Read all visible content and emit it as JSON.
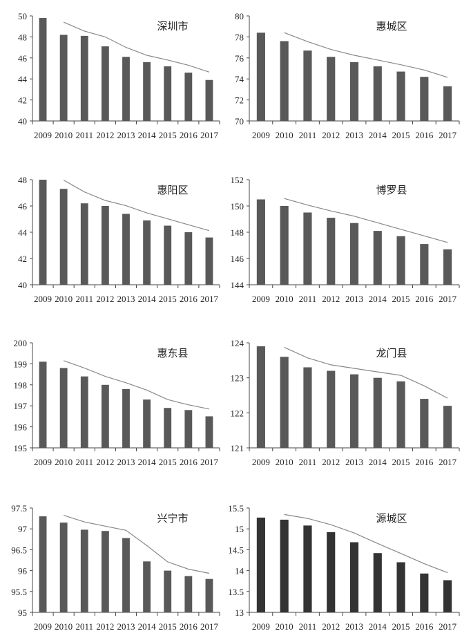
{
  "chart_data": [
    {
      "type": "bar",
      "title": "深圳市",
      "categories": [
        "2009",
        "2010",
        "2011",
        "2012",
        "2013",
        "2014",
        "2015",
        "2016",
        "2017"
      ],
      "values": [
        49.8,
        48.2,
        48.1,
        47.1,
        46.1,
        45.6,
        45.2,
        44.6,
        43.9
      ],
      "ylim": [
        40,
        50
      ],
      "yticks": [
        "40",
        "42",
        "44",
        "46",
        "48",
        "50"
      ],
      "trendline": "2-period moving average",
      "bar_color": "#595959"
    },
    {
      "type": "bar",
      "title": "惠城区",
      "categories": [
        "2009",
        "2010",
        "2011",
        "2012",
        "2013",
        "2014",
        "2015",
        "2016",
        "2017"
      ],
      "values": [
        78.4,
        77.6,
        76.7,
        76.1,
        75.6,
        75.2,
        74.7,
        74.2,
        73.3
      ],
      "ylim": [
        70,
        80
      ],
      "yticks": [
        "70",
        "72",
        "74",
        "76",
        "78",
        "80"
      ],
      "trendline": "2-period moving average",
      "bar_color": "#595959"
    },
    {
      "type": "bar",
      "title": "惠阳区",
      "categories": [
        "2009",
        "2010",
        "2011",
        "2012",
        "2013",
        "2014",
        "2015",
        "2016",
        "2017"
      ],
      "values": [
        48.0,
        47.3,
        46.2,
        46.0,
        45.4,
        44.9,
        44.5,
        44.0,
        43.6
      ],
      "ylim": [
        40,
        48
      ],
      "yticks": [
        "40",
        "42",
        "44",
        "46",
        "48"
      ],
      "trendline": "2-period moving average",
      "bar_color": "#595959"
    },
    {
      "type": "bar",
      "title": "博罗县",
      "categories": [
        "2009",
        "2010",
        "2011",
        "2012",
        "2013",
        "2014",
        "2015",
        "2016",
        "2017"
      ],
      "values": [
        150.5,
        150.0,
        149.5,
        149.1,
        148.7,
        148.1,
        147.7,
        147.1,
        146.7
      ],
      "ylim": [
        144,
        152
      ],
      "yticks": [
        "144",
        "146",
        "148",
        "150",
        "152"
      ],
      "trendline": "2-period moving average",
      "bar_color": "#595959"
    },
    {
      "type": "bar",
      "title": "惠东县",
      "categories": [
        "2009",
        "2010",
        "2011",
        "2012",
        "2013",
        "2014",
        "2015",
        "2016",
        "2017"
      ],
      "values": [
        199.1,
        198.8,
        198.4,
        198.0,
        197.8,
        197.3,
        196.9,
        196.8,
        196.5
      ],
      "ylim": [
        195,
        200
      ],
      "yticks": [
        "195",
        "196",
        "197",
        "198",
        "199",
        "200"
      ],
      "trendline": "2-period moving average",
      "bar_color": "#595959"
    },
    {
      "type": "bar",
      "title": "龙门县",
      "categories": [
        "2009",
        "2010",
        "2011",
        "2012",
        "2013",
        "2014",
        "2015",
        "2016",
        "2017"
      ],
      "values": [
        123.9,
        123.6,
        123.3,
        123.2,
        123.1,
        123.0,
        122.9,
        122.4,
        122.2
      ],
      "ylim": [
        121,
        124
      ],
      "yticks": [
        "121",
        "122",
        "123",
        "124"
      ],
      "trendline": "2-period moving average",
      "bar_color": "#595959"
    },
    {
      "type": "bar",
      "title": "兴宁市",
      "categories": [
        "2009",
        "2010",
        "2011",
        "2012",
        "2013",
        "2014",
        "2015",
        "2016",
        "2017"
      ],
      "values": [
        97.3,
        97.15,
        96.98,
        96.95,
        96.78,
        96.22,
        96.0,
        95.87,
        95.8
      ],
      "ylim": [
        95,
        97.5
      ],
      "yticks": [
        "95",
        "95.5",
        "96",
        "96.5",
        "97",
        "97.5"
      ],
      "trendline": "2-period moving average",
      "bar_color": "#595959"
    },
    {
      "type": "bar",
      "title": "源城区",
      "categories": [
        "2009",
        "2010",
        "2011",
        "2012",
        "2013",
        "2014",
        "2015",
        "2016",
        "2017"
      ],
      "values": [
        15.27,
        15.22,
        15.08,
        14.92,
        14.68,
        14.42,
        14.2,
        13.93,
        13.77
      ],
      "ylim": [
        13,
        15.5
      ],
      "yticks": [
        "13",
        "13.5",
        "14",
        "14.5",
        "15",
        "15.5"
      ],
      "trendline": "2-period moving average",
      "bar_color": "#333333"
    }
  ]
}
